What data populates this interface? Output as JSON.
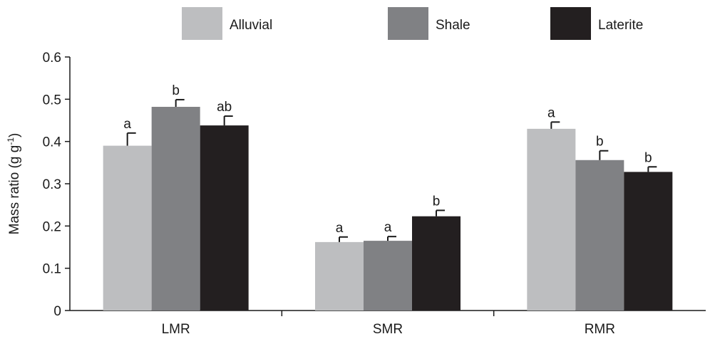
{
  "chart_data": {
    "type": "bar",
    "categories": [
      "LMR",
      "SMR",
      "RMR"
    ],
    "series": [
      {
        "name": "Alluvial",
        "color": "#bdbec0",
        "values": [
          0.39,
          0.162,
          0.43
        ],
        "errors": [
          0.03,
          0.012,
          0.016
        ],
        "sig": [
          "a",
          "a",
          "a"
        ]
      },
      {
        "name": "Shale",
        "color": "#808184",
        "values": [
          0.482,
          0.165,
          0.356
        ],
        "errors": [
          0.017,
          0.01,
          0.022
        ],
        "sig": [
          "b",
          "a",
          "b"
        ]
      },
      {
        "name": "Laterite",
        "color": "#231f20",
        "values": [
          0.438,
          0.223,
          0.328
        ],
        "errors": [
          0.022,
          0.014,
          0.012
        ],
        "sig": [
          "ab",
          "b",
          "b"
        ]
      }
    ],
    "ylabel_main": "Mass ratio (g g",
    "ylabel_sup": "-1",
    "ylabel_close": ")",
    "ylim": [
      0,
      0.6
    ],
    "yticks": [
      "0",
      "0.1",
      "0.2",
      "0.3",
      "0.4",
      "0.5",
      "0.6"
    ],
    "legend_position": "top"
  }
}
